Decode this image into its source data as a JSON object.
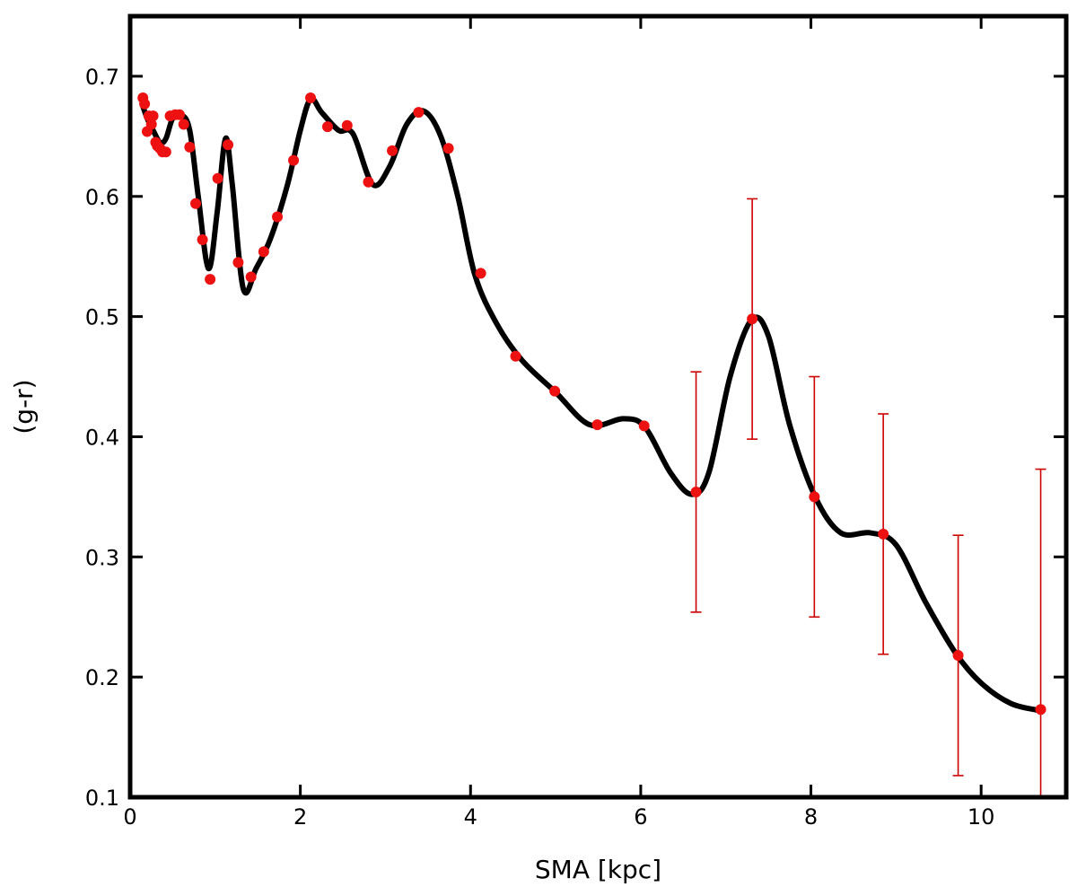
{
  "chart_data": {
    "type": "scatter",
    "title": "",
    "xlabel": "SMA [kpc]",
    "ylabel": "(g-r)",
    "xlim": [
      0,
      11
    ],
    "ylim": [
      0.1,
      0.75
    ],
    "x_ticks": [
      0,
      2,
      4,
      6,
      8,
      10
    ],
    "x_tick_labels": [
      "0",
      "2",
      "4",
      "6",
      "8",
      "10"
    ],
    "y_ticks": [
      0.1,
      0.2,
      0.3,
      0.4,
      0.5,
      0.6,
      0.7
    ],
    "y_tick_labels": [
      "0.1",
      "0.2",
      "0.3",
      "0.4",
      "0.5",
      "0.6",
      "0.7"
    ],
    "grid": false,
    "legend": "none",
    "colors": {
      "points": "#ee1111",
      "curve": "#000000",
      "errorbars": "#cc0000"
    },
    "series": [
      {
        "kind": "points",
        "x": [
          0.15,
          0.17,
          0.2,
          0.22,
          0.25,
          0.27,
          0.3,
          0.32,
          0.35,
          0.38,
          0.42,
          0.47,
          0.53,
          0.58,
          0.63,
          0.7,
          0.77,
          0.85,
          0.94,
          1.03,
          1.15,
          1.27,
          1.42,
          1.57,
          1.73,
          1.92,
          2.12,
          2.32,
          2.55,
          2.8,
          3.08,
          3.39,
          3.74,
          4.12,
          4.53,
          4.99,
          5.49,
          6.04,
          6.65,
          7.31,
          8.04,
          8.85,
          9.73,
          10.7
        ],
        "y": [
          0.682,
          0.677,
          0.654,
          0.667,
          0.66,
          0.667,
          0.645,
          0.642,
          0.64,
          0.637,
          0.637,
          0.667,
          0.668,
          0.668,
          0.66,
          0.641,
          0.594,
          0.564,
          0.531,
          0.615,
          0.643,
          0.545,
          0.533,
          0.554,
          0.583,
          0.63,
          0.682,
          0.658,
          0.659,
          0.612,
          0.638,
          0.67,
          0.64,
          0.536,
          0.467,
          0.438,
          0.41,
          0.409,
          0.354,
          0.498,
          0.35,
          0.319,
          0.218,
          0.173
        ],
        "yerr": [
          null,
          null,
          null,
          null,
          null,
          null,
          null,
          null,
          null,
          null,
          null,
          null,
          null,
          null,
          null,
          null,
          null,
          null,
          null,
          null,
          null,
          null,
          null,
          null,
          null,
          null,
          null,
          null,
          null,
          null,
          null,
          null,
          null,
          null,
          null,
          null,
          null,
          null,
          0.1,
          0.1,
          0.1,
          0.1,
          0.1,
          0.2
        ]
      },
      {
        "kind": "curve",
        "x": [
          0.15,
          0.2,
          0.27,
          0.35,
          0.42,
          0.5,
          0.6,
          0.7,
          0.8,
          0.92,
          1.02,
          1.12,
          1.2,
          1.33,
          1.48,
          1.65,
          1.85,
          2.0,
          2.12,
          2.25,
          2.45,
          2.62,
          2.85,
          3.05,
          3.25,
          3.45,
          3.65,
          3.85,
          4.05,
          4.3,
          4.6,
          5.0,
          5.4,
          5.8,
          6.05,
          6.35,
          6.6,
          6.8,
          7.05,
          7.3,
          7.5,
          7.75,
          8.05,
          8.35,
          8.7,
          9.0,
          9.35,
          9.7,
          10.0,
          10.35,
          10.7
        ],
        "y": [
          0.675,
          0.665,
          0.655,
          0.645,
          0.648,
          0.665,
          0.668,
          0.655,
          0.6,
          0.54,
          0.585,
          0.648,
          0.61,
          0.523,
          0.54,
          0.565,
          0.61,
          0.655,
          0.681,
          0.67,
          0.655,
          0.652,
          0.61,
          0.625,
          0.66,
          0.671,
          0.65,
          0.6,
          0.535,
          0.495,
          0.464,
          0.437,
          0.41,
          0.415,
          0.408,
          0.37,
          0.352,
          0.37,
          0.45,
          0.497,
          0.484,
          0.41,
          0.35,
          0.32,
          0.32,
          0.31,
          0.262,
          0.22,
          0.195,
          0.178,
          0.172
        ]
      }
    ]
  }
}
